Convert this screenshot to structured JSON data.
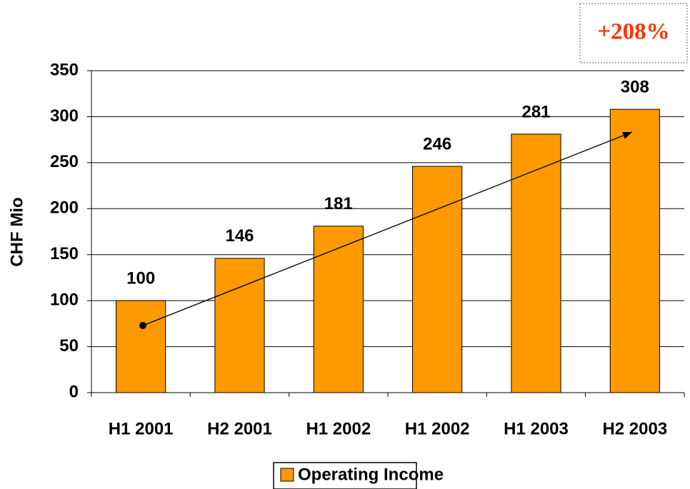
{
  "chart_data": {
    "type": "bar",
    "categories": [
      "H1 2001",
      "H2 2001",
      "H1 2002",
      "H1 2002",
      "H1 2003",
      "H2 2003"
    ],
    "series": [
      {
        "name": "Operating Income",
        "color": "#ff9900",
        "values": [
          100,
          146,
          181,
          246,
          281,
          308
        ]
      }
    ],
    "ylabel": "CHF Mio",
    "annotation": "+208%",
    "ylim": [
      0,
      350
    ],
    "yticks": [
      0,
      50,
      100,
      150,
      200,
      250,
      300,
      350
    ],
    "grid": true,
    "legend": "bottom"
  }
}
